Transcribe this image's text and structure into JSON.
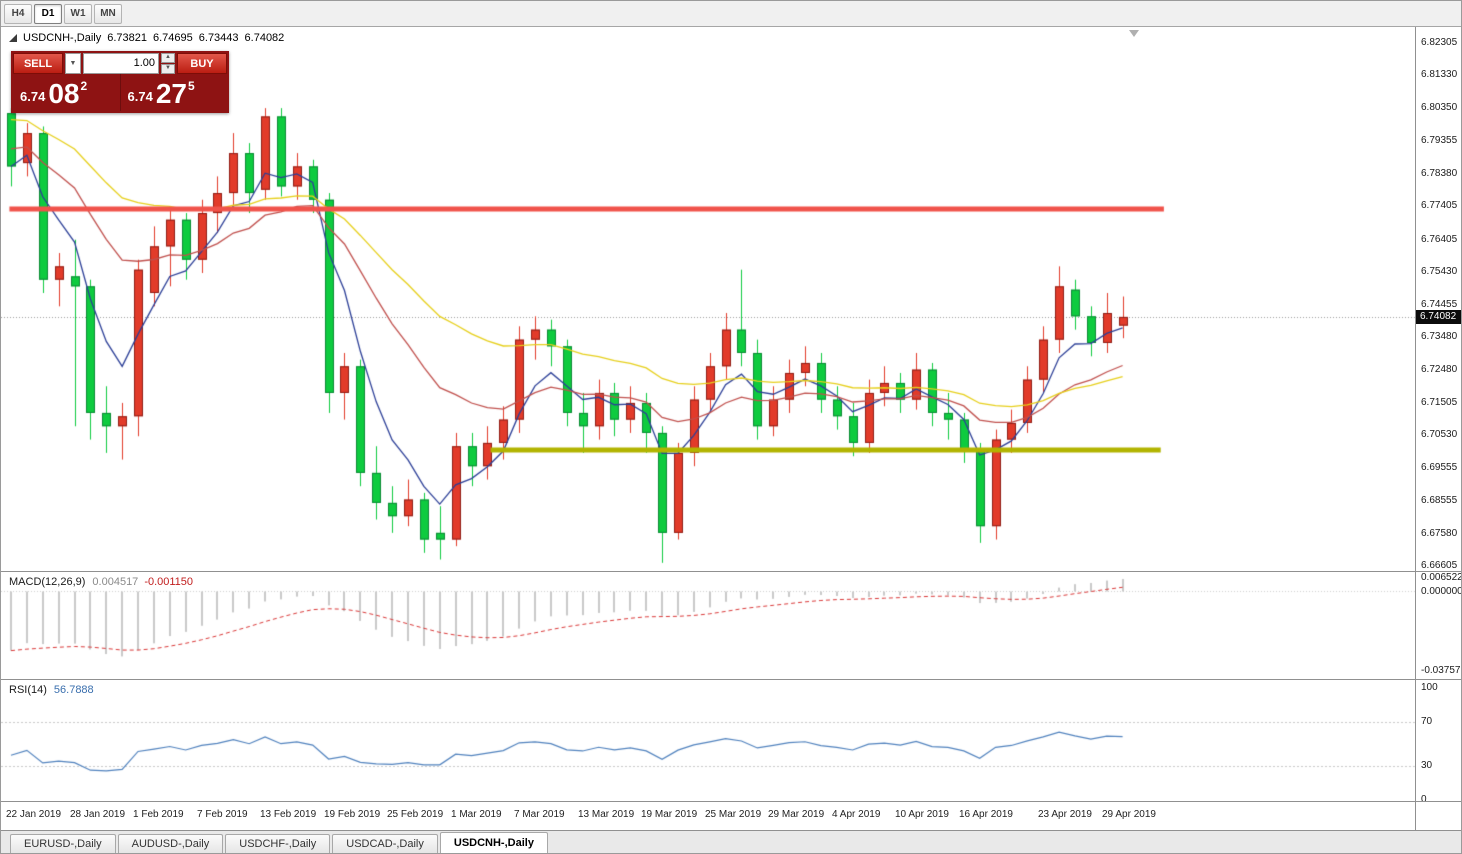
{
  "toolbar": {
    "timeframes": [
      {
        "label": "H4",
        "active": false
      },
      {
        "label": "D1",
        "active": true
      },
      {
        "label": "W1",
        "active": false
      },
      {
        "label": "MN",
        "active": false
      }
    ]
  },
  "chart": {
    "header": {
      "symbol": "USDCNH-,Daily",
      "open": "6.73821",
      "high": "6.74695",
      "low": "6.73443",
      "close": "6.74082"
    },
    "price_axis": [
      "6.82305",
      "6.81330",
      "6.80350",
      "6.79355",
      "6.78380",
      "6.77405",
      "6.76405",
      "6.75430",
      "6.74455",
      "6.73480",
      "6.72480",
      "6.71505",
      "6.70530",
      "6.69555",
      "6.68555",
      "6.67580",
      "6.66605"
    ],
    "current_price_label": "6.74082"
  },
  "trade": {
    "sell_label": "SELL",
    "buy_label": "BUY",
    "volume": "1.00",
    "sell_price": {
      "small": "6.74",
      "big": "08",
      "sup": "2"
    },
    "buy_price": {
      "small": "6.74",
      "big": "27",
      "sup": "5"
    }
  },
  "macd": {
    "label": "MACD(12,26,9)",
    "value_main": "0.004517",
    "value_signal": "-0.001150",
    "axis": [
      "0.006522",
      "0.000000",
      "-0.03757"
    ]
  },
  "rsi": {
    "label": "RSI(14)",
    "value": "56.7888",
    "axis": [
      "100",
      "70",
      "30",
      "0"
    ]
  },
  "date_axis": {
    "labels": [
      {
        "text": "22 Jan 2019",
        "bar": 0
      },
      {
        "text": "28 Jan 2019",
        "bar": 4
      },
      {
        "text": "1 Feb 2019",
        "bar": 8
      },
      {
        "text": "7 Feb 2019",
        "bar": 12
      },
      {
        "text": "13 Feb 2019",
        "bar": 16
      },
      {
        "text": "19 Feb 2019",
        "bar": 20
      },
      {
        "text": "25 Feb 2019",
        "bar": 24
      },
      {
        "text": "1 Mar 2019",
        "bar": 28
      },
      {
        "text": "7 Mar 2019",
        "bar": 32
      },
      {
        "text": "13 Mar 2019",
        "bar": 36
      },
      {
        "text": "19 Mar 2019",
        "bar": 40
      },
      {
        "text": "25 Mar 2019",
        "bar": 44
      },
      {
        "text": "29 Mar 2019",
        "bar": 48
      },
      {
        "text": "4 Apr 2019",
        "bar": 52
      },
      {
        "text": "10 Apr 2019",
        "bar": 56
      },
      {
        "text": "16 Apr 2019",
        "bar": 60
      },
      {
        "text": "23 Apr 2019",
        "bar": 65
      },
      {
        "text": "29 Apr 2019",
        "bar": 69
      }
    ]
  },
  "tabs": {
    "items": [
      {
        "label": "EURUSD-,Daily",
        "active": false
      },
      {
        "label": "AUDUSD-,Daily",
        "active": false
      },
      {
        "label": "USDCHF-,Daily",
        "active": false
      },
      {
        "label": "USDCAD-,Daily",
        "active": false
      },
      {
        "label": "USDCNH-,Daily",
        "active": true
      }
    ]
  },
  "chart_data": {
    "type": "candlestick",
    "symbol": "USDCNH",
    "timeframe": "Daily",
    "ylim": [
      6.66605,
      6.82305
    ],
    "bull_color": "#e23b2a",
    "bear_color": "#0ecb3f",
    "current_price": 6.74082,
    "candles": [
      [
        6.802,
        6.8035,
        6.78,
        6.786
      ],
      [
        6.787,
        6.799,
        6.783,
        6.796
      ],
      [
        6.796,
        6.798,
        6.748,
        6.752
      ],
      [
        6.752,
        6.76,
        6.744,
        6.756
      ],
      [
        6.753,
        6.764,
        6.708,
        6.75
      ],
      [
        6.75,
        6.752,
        6.704,
        6.712
      ],
      [
        6.712,
        6.72,
        6.7,
        6.708
      ],
      [
        6.708,
        6.715,
        6.698,
        6.711
      ],
      [
        6.711,
        6.758,
        6.705,
        6.755
      ],
      [
        6.748,
        6.768,
        6.744,
        6.762
      ],
      [
        6.762,
        6.773,
        6.75,
        6.77
      ],
      [
        6.77,
        6.772,
        6.752,
        6.758
      ],
      [
        6.758,
        6.776,
        6.754,
        6.772
      ],
      [
        6.772,
        6.783,
        6.766,
        6.778
      ],
      [
        6.778,
        6.796,
        6.774,
        6.79
      ],
      [
        6.79,
        6.793,
        6.772,
        6.778
      ],
      [
        6.779,
        6.8035,
        6.776,
        6.801
      ],
      [
        6.801,
        6.8035,
        6.777,
        6.78
      ],
      [
        6.78,
        6.79,
        6.776,
        6.786
      ],
      [
        6.786,
        6.788,
        6.772,
        6.776
      ],
      [
        6.776,
        6.778,
        6.712,
        6.718
      ],
      [
        6.718,
        6.73,
        6.71,
        6.726
      ],
      [
        6.726,
        6.728,
        6.69,
        6.694
      ],
      [
        6.694,
        6.702,
        6.68,
        6.685
      ],
      [
        6.685,
        6.69,
        6.676,
        6.681
      ],
      [
        6.681,
        6.692,
        6.678,
        6.686
      ],
      [
        6.686,
        6.688,
        6.67,
        6.674
      ],
      [
        6.676,
        6.684,
        6.668,
        6.674
      ],
      [
        6.674,
        6.706,
        6.672,
        6.702
      ],
      [
        6.702,
        6.706,
        6.69,
        6.696
      ],
      [
        6.696,
        6.708,
        6.692,
        6.703
      ],
      [
        6.703,
        6.714,
        6.698,
        6.71
      ],
      [
        6.71,
        6.738,
        6.706,
        6.734
      ],
      [
        6.734,
        6.741,
        6.728,
        6.737
      ],
      [
        6.737,
        6.74,
        6.726,
        6.732
      ],
      [
        6.732,
        6.734,
        6.708,
        6.712
      ],
      [
        6.712,
        6.718,
        6.7,
        6.708
      ],
      [
        6.708,
        6.722,
        6.704,
        6.718
      ],
      [
        6.718,
        6.721,
        6.705,
        6.71
      ],
      [
        6.71,
        6.72,
        6.706,
        6.715
      ],
      [
        6.715,
        6.718,
        6.7,
        6.706
      ],
      [
        6.706,
        6.708,
        6.667,
        6.676
      ],
      [
        6.676,
        6.703,
        6.674,
        6.7
      ],
      [
        6.7,
        6.72,
        6.696,
        6.716
      ],
      [
        6.716,
        6.73,
        6.712,
        6.726
      ],
      [
        6.726,
        6.742,
        6.722,
        6.737
      ],
      [
        6.737,
        6.755,
        6.726,
        6.73
      ],
      [
        6.73,
        6.734,
        6.704,
        6.708
      ],
      [
        6.708,
        6.72,
        6.705,
        6.716
      ],
      [
        6.716,
        6.728,
        6.712,
        6.724
      ],
      [
        6.724,
        6.732,
        6.72,
        6.727
      ],
      [
        6.727,
        6.73,
        6.712,
        6.716
      ],
      [
        6.716,
        6.72,
        6.707,
        6.711
      ],
      [
        6.711,
        6.715,
        6.699,
        6.703
      ],
      [
        6.703,
        6.722,
        6.7,
        6.718
      ],
      [
        6.718,
        6.726,
        6.714,
        6.721
      ],
      [
        6.721,
        6.724,
        6.712,
        6.716
      ],
      [
        6.716,
        6.73,
        6.713,
        6.725
      ],
      [
        6.725,
        6.727,
        6.708,
        6.712
      ],
      [
        6.712,
        6.718,
        6.704,
        6.71
      ],
      [
        6.71,
        6.712,
        6.697,
        6.701
      ],
      [
        6.701,
        6.703,
        6.673,
        6.678
      ],
      [
        6.678,
        6.707,
        6.674,
        6.704
      ],
      [
        6.704,
        6.713,
        6.7,
        6.709
      ],
      [
        6.709,
        6.726,
        6.706,
        6.722
      ],
      [
        6.722,
        6.738,
        6.718,
        6.734
      ],
      [
        6.734,
        6.756,
        6.73,
        6.75
      ],
      [
        6.749,
        6.752,
        6.737,
        6.741
      ],
      [
        6.741,
        6.744,
        6.729,
        6.733
      ],
      [
        6.733,
        6.748,
        6.73,
        6.742
      ],
      [
        6.73821,
        6.74695,
        6.73443,
        6.74082
      ]
    ],
    "moving_averages": [
      {
        "period": 5,
        "seed": null,
        "color": "#2c3f97"
      },
      {
        "period": 16,
        "seed": 6.792,
        "color": "#c0504d"
      },
      {
        "period": 30,
        "seed": 6.801,
        "color": "#e6cf1a"
      }
    ],
    "hlines": [
      {
        "price": 6.7732,
        "color": "#f0534b",
        "width": 5,
        "from_bar": -0.1,
        "to_bar": 72.6
      },
      {
        "price": 6.701,
        "color": "#b2b400",
        "width": 5,
        "from_bar": 30.2,
        "to_bar": 72.4
      }
    ],
    "macd": {
      "fast": 12,
      "slow": 26,
      "signal": 9,
      "seed_offsets": [
        -0.01,
        0.021
      ],
      "hist_color": "#c9c9c9",
      "signal_color": "#d93636",
      "range": [
        -0.0415,
        0.009
      ]
    },
    "rsi": {
      "period": 14,
      "color": "#4f81bd",
      "levels": [
        70,
        30
      ]
    }
  }
}
